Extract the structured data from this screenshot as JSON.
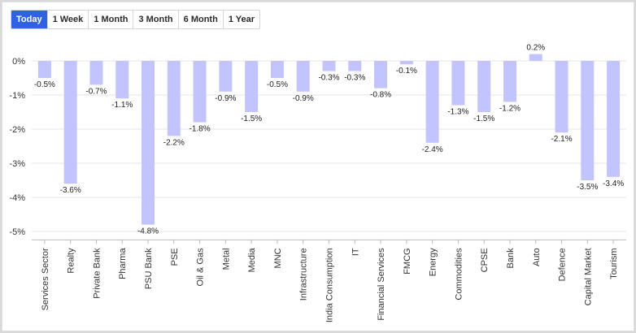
{
  "tabs": [
    {
      "label": "Today",
      "active": true
    },
    {
      "label": "1 Week",
      "active": false
    },
    {
      "label": "1 Month",
      "active": false
    },
    {
      "label": "3 Month",
      "active": false
    },
    {
      "label": "6 Month",
      "active": false
    },
    {
      "label": "1 Year",
      "active": false
    }
  ],
  "colors": {
    "bar": "#c2c4ff",
    "accent": "#2f62e0"
  },
  "chart_data": {
    "type": "bar",
    "categories": [
      "Services Sector",
      "Realty",
      "Private Bank",
      "Pharma",
      "PSU Bank",
      "PSE",
      "Oil & Gas",
      "Metal",
      "Media",
      "MNC",
      "Infrastructure",
      "India Consumption",
      "IT",
      "Financial Services",
      "FMCG",
      "Energy",
      "Commodities",
      "CPSE",
      "Bank",
      "Auto",
      "Defence",
      "Capital Market",
      "Tourism"
    ],
    "values": [
      -0.5,
      -3.6,
      -0.7,
      -1.1,
      -4.8,
      -2.2,
      -1.8,
      -0.9,
      -1.5,
      -0.5,
      -0.9,
      -0.3,
      -0.3,
      -0.8,
      -0.1,
      -2.4,
      -1.3,
      -1.5,
      -1.2,
      0.2,
      -2.1,
      -3.5,
      -3.4
    ],
    "data_labels": [
      "-0.5%",
      "-3.6%",
      "-0.7%",
      "-1.1%",
      "-4.8%",
      "-2.2%",
      "-1.8%",
      "-0.9%",
      "-1.5%",
      "-0.5%",
      "-0.9%",
      "-0.3%",
      "-0.3%",
      "-0.8%",
      "-0.1%",
      "-2.4%",
      "-1.3%",
      "-1.5%",
      "-1.2%",
      "0.2%",
      "-2.1%",
      "-3.5%",
      "-3.4%"
    ],
    "yticks": [
      0,
      -1,
      -2,
      -3,
      -4,
      -5
    ],
    "ytick_labels": [
      "0%",
      "-1%",
      "-2%",
      "-3%",
      "-4%",
      "-5%"
    ],
    "ylim": [
      -5.2,
      0.3
    ],
    "grid": true
  }
}
